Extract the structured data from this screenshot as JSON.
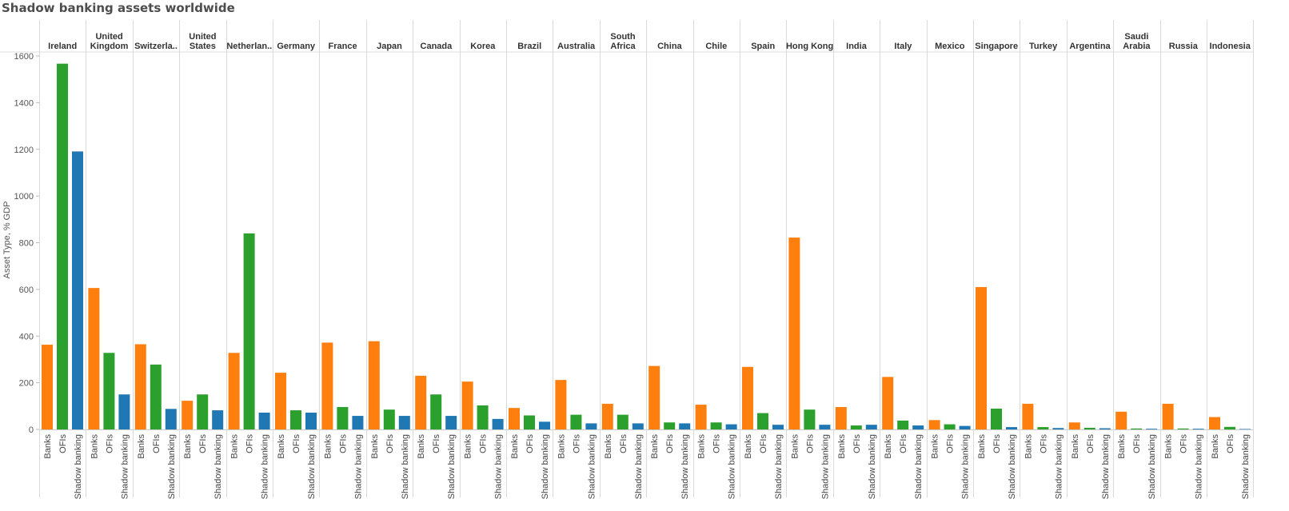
{
  "title": "Shadow banking assets worldwide",
  "chart_data": {
    "type": "bar",
    "title": "Shadow banking assets worldwide",
    "ylabel": "Asset Type, % GDP",
    "xlabel": "",
    "ylim": [
      0,
      1600
    ],
    "yticks": [
      0,
      200,
      400,
      600,
      800,
      1000,
      1200,
      1400,
      1600
    ],
    "grid": false,
    "categories": [
      "Banks",
      "OFIs",
      "Shadow banking"
    ],
    "colors": {
      "Banks": "#ff7f0e",
      "OFIs": "#2ca02c",
      "Shadow banking": "#1f77b4"
    },
    "countries": [
      {
        "name": "Ireland",
        "values": [
          363,
          1567,
          1191
        ]
      },
      {
        "name": "United Kingdom",
        "values": [
          606,
          328,
          150
        ]
      },
      {
        "name": "Switzerla..",
        "values": [
          365,
          278,
          88
        ]
      },
      {
        "name": "United States",
        "values": [
          123,
          150,
          82
        ]
      },
      {
        "name": "Netherlan..",
        "values": [
          328,
          840,
          72
        ]
      },
      {
        "name": "Germany",
        "values": [
          243,
          82,
          72
        ]
      },
      {
        "name": "France",
        "values": [
          372,
          96,
          58
        ]
      },
      {
        "name": "Japan",
        "values": [
          378,
          85,
          58
        ]
      },
      {
        "name": "Canada",
        "values": [
          230,
          150,
          58
        ]
      },
      {
        "name": "Korea",
        "values": [
          205,
          103,
          45
        ]
      },
      {
        "name": "Brazil",
        "values": [
          92,
          60,
          33
        ]
      },
      {
        "name": "Australia",
        "values": [
          212,
          63,
          26
        ]
      },
      {
        "name": "South Africa",
        "values": [
          110,
          63,
          26
        ]
      },
      {
        "name": "China",
        "values": [
          272,
          30,
          26
        ]
      },
      {
        "name": "Chile",
        "values": [
          106,
          30,
          22
        ]
      },
      {
        "name": "Spain",
        "values": [
          268,
          70,
          20
        ]
      },
      {
        "name": "Hong Kong",
        "values": [
          822,
          85,
          20
        ]
      },
      {
        "name": "India",
        "values": [
          96,
          17,
          20
        ]
      },
      {
        "name": "Italy",
        "values": [
          225,
          38,
          17
        ]
      },
      {
        "name": "Mexico",
        "values": [
          40,
          22,
          15
        ]
      },
      {
        "name": "Singapore",
        "values": [
          610,
          89,
          10
        ]
      },
      {
        "name": "Turkey",
        "values": [
          110,
          10,
          6
        ]
      },
      {
        "name": "Argentina",
        "values": [
          30,
          7,
          5
        ]
      },
      {
        "name": "Saudi Arabia",
        "values": [
          76,
          4,
          3
        ]
      },
      {
        "name": "Russia",
        "values": [
          110,
          4,
          3
        ]
      },
      {
        "name": "Indonesia",
        "values": [
          53,
          11,
          2
        ]
      }
    ]
  }
}
